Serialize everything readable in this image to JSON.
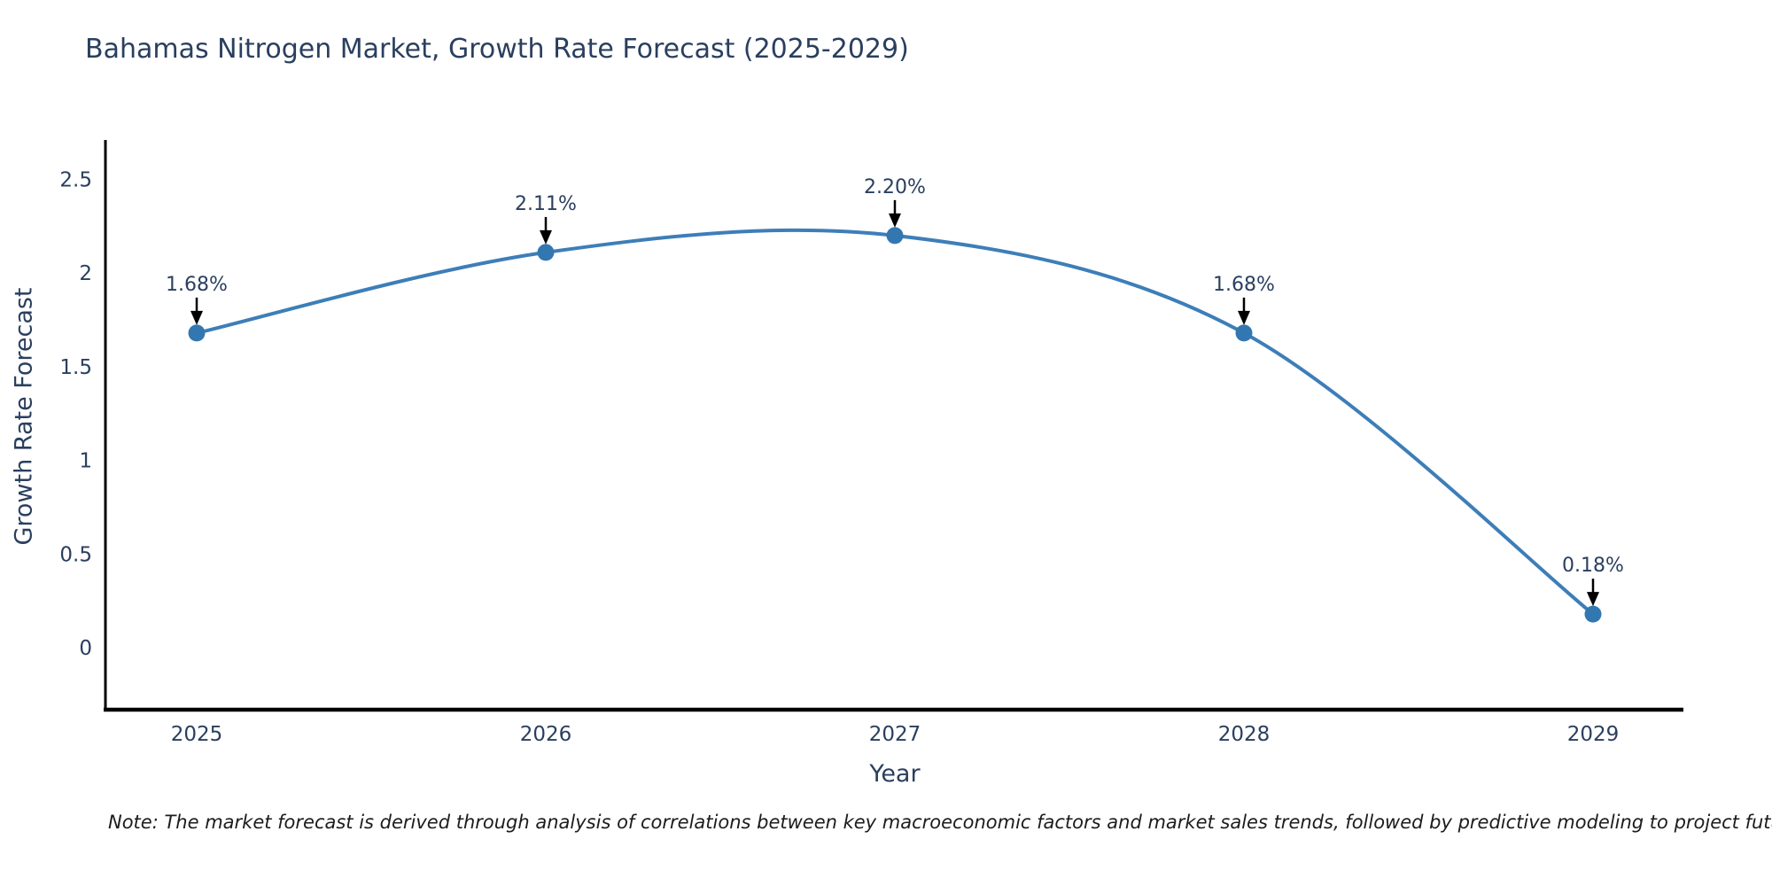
{
  "title": "Bahamas Nitrogen Market, Growth Rate Forecast (2025-2029)",
  "note": "Note: The market forecast is derived through analysis of correlations between key macroeconomic factors and market sales trends, followed by predictive modeling to project future sales",
  "chart_data": {
    "type": "line",
    "title": "Bahamas Nitrogen Market, Growth Rate Forecast (2025-2029)",
    "xlabel": "Year",
    "ylabel": "Growth Rate Forecast",
    "categories": [
      "2025",
      "2026",
      "2027",
      "2028",
      "2029"
    ],
    "values": [
      1.68,
      2.11,
      2.2,
      1.68,
      0.18
    ],
    "point_labels": [
      "1.68%",
      "2.11%",
      "2.20%",
      "1.68%",
      "0.18%"
    ],
    "yticks": [
      0,
      0.5,
      1,
      1.5,
      2,
      2.5
    ],
    "ylim": [
      -0.33,
      2.71
    ],
    "line_shape": "spline",
    "grid": false,
    "legend_position": "none",
    "line_color": "#3d7eb8",
    "marker_color": "#3377b0",
    "annotation_arrow_color": "#000000",
    "tick_color": "#2a3f5f",
    "axis_color": "#000000",
    "background_color": "#ffffff"
  }
}
